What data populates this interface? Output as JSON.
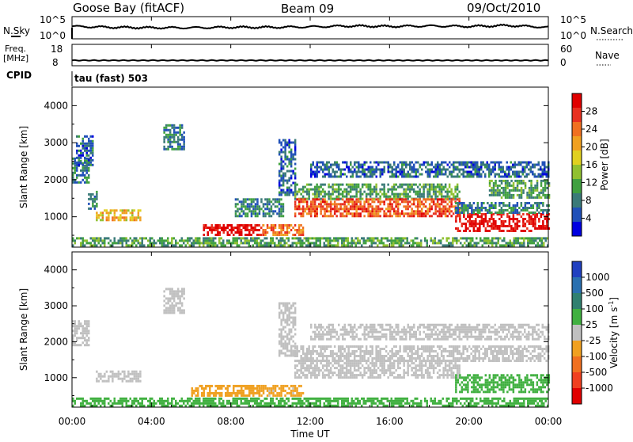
{
  "header": {
    "station": "Goose Bay (fitACF)",
    "beam": "Beam 09",
    "date": "09/Oct/2010"
  },
  "noise_panel": {
    "left_label": "N.Sky",
    "right_label": "N.Search",
    "left_ticks": [
      "10^5",
      "10^0"
    ],
    "right_ticks": [
      "10^5",
      "10^0"
    ]
  },
  "freq_panel": {
    "left_label_line1": "Freq.",
    "left_label_line2": "[MHz]",
    "left_ticks": [
      "18",
      "8"
    ],
    "right_label": "Nave",
    "right_ticks": [
      "60",
      "0"
    ],
    "cpid_label": "CPID",
    "cpid_value": "tau (fast) 503"
  },
  "power_colorbar": {
    "label": "Power [dB]",
    "ticks": [
      "28",
      "24",
      "20",
      "16",
      "12",
      "8",
      "4"
    ],
    "colors": [
      "#0000e0",
      "#2050b8",
      "#3a7a78",
      "#40a040",
      "#90c030",
      "#e0d020",
      "#f0a020",
      "#f07020",
      "#e83020",
      "#e00000"
    ]
  },
  "velocity_colorbar": {
    "label": "Velocity [m s",
    "label_sup": "-1",
    "label_end": "]",
    "ticks": [
      "1000",
      "500",
      "100",
      "25",
      "-25",
      "-100",
      "-500",
      "-1000"
    ],
    "colors": [
      "#2040c0",
      "#2a70b0",
      "#308070",
      "#40b040",
      "#c0c0c0",
      "#f0a020",
      "#f07020",
      "#f04020",
      "#e00000"
    ]
  },
  "chart_data": [
    {
      "type": "line",
      "name": "noise",
      "x": [
        0,
        2,
        4,
        6,
        8,
        10,
        12,
        14,
        16,
        18,
        20,
        22,
        24
      ],
      "series": [
        {
          "values": [
            2.8,
            2.6,
            2.5,
            2.5,
            2.6,
            2.6,
            2.7,
            2.9,
            2.8,
            2.9,
            2.8,
            3.0,
            2.6
          ]
        }
      ]
    },
    {
      "type": "line",
      "name": "frequency",
      "x": [
        0,
        24
      ],
      "series": [
        {
          "values": [
            10.5,
            10.5
          ]
        }
      ]
    },
    {
      "type": "heatmap",
      "name": "power",
      "xlabel": "Time UT",
      "ylabel": "Slant Range [km]",
      "xlim": [
        0,
        24
      ],
      "ylim": [
        180,
        4500
      ],
      "xticks": [
        "00:00",
        "04:00",
        "08:00",
        "12:00",
        "16:00",
        "20:00",
        "00:00"
      ],
      "yticks": [
        1000,
        2000,
        3000,
        4000
      ],
      "regions": [
        {
          "t0": 0.0,
          "t1": 24.0,
          "r0": 200,
          "r1": 450,
          "value": 10
        },
        {
          "t0": 0.0,
          "t1": 0.8,
          "r0": 1900,
          "r1": 2600,
          "value": 8
        },
        {
          "t0": 0.2,
          "t1": 1.0,
          "r0": 2400,
          "r1": 3200,
          "value": 6
        },
        {
          "t0": 0.8,
          "t1": 1.2,
          "r0": 1200,
          "r1": 1700,
          "value": 8
        },
        {
          "t0": 1.2,
          "t1": 3.4,
          "r0": 900,
          "r1": 1200,
          "value": 18
        },
        {
          "t0": 4.6,
          "t1": 5.6,
          "r0": 2800,
          "r1": 3500,
          "value": 8
        },
        {
          "t0": 6.6,
          "t1": 9.6,
          "r0": 500,
          "r1": 800,
          "value": 28
        },
        {
          "t0": 9.6,
          "t1": 11.6,
          "r0": 500,
          "r1": 800,
          "value": 22
        },
        {
          "t0": 8.2,
          "t1": 10.6,
          "r0": 1000,
          "r1": 1500,
          "value": 8
        },
        {
          "t0": 10.4,
          "t1": 11.2,
          "r0": 1600,
          "r1": 3100,
          "value": 6
        },
        {
          "t0": 11.2,
          "t1": 19.5,
          "r0": 1500,
          "r1": 1900,
          "value": 10
        },
        {
          "t0": 11.2,
          "t1": 19.5,
          "r0": 1000,
          "r1": 1500,
          "value": 24
        },
        {
          "t0": 12.0,
          "t1": 24.0,
          "r0": 2100,
          "r1": 2500,
          "value": 6
        },
        {
          "t0": 19.3,
          "t1": 24.0,
          "r0": 600,
          "r1": 1100,
          "value": 28
        },
        {
          "t0": 19.3,
          "t1": 24.0,
          "r0": 1100,
          "r1": 1400,
          "value": 8
        },
        {
          "t0": 21.0,
          "t1": 24.0,
          "r0": 1500,
          "r1": 2000,
          "value": 10
        }
      ]
    },
    {
      "type": "heatmap",
      "name": "velocity",
      "xlabel": "Time UT",
      "ylabel": "Slant Range [km]",
      "xlim": [
        0,
        24
      ],
      "ylim": [
        180,
        4500
      ],
      "xticks": [
        "00:00",
        "04:00",
        "08:00",
        "12:00",
        "16:00",
        "20:00",
        "00:00"
      ],
      "yticks": [
        1000,
        2000,
        3000,
        4000
      ],
      "regions": [
        {
          "t0": 0.0,
          "t1": 24.0,
          "r0": 200,
          "r1": 450,
          "value": 60
        },
        {
          "t0": 0.0,
          "t1": 0.8,
          "r0": 1900,
          "r1": 2600,
          "value": 0
        },
        {
          "t0": 1.2,
          "t1": 3.4,
          "r0": 900,
          "r1": 1200,
          "value": 0
        },
        {
          "t0": 4.6,
          "t1": 5.6,
          "r0": 2800,
          "r1": 3500,
          "value": 0
        },
        {
          "t0": 6.0,
          "t1": 9.4,
          "r0": 500,
          "r1": 800,
          "value": -80
        },
        {
          "t0": 9.4,
          "t1": 11.6,
          "r0": 500,
          "r1": 800,
          "value": -40
        },
        {
          "t0": 10.4,
          "t1": 11.2,
          "r0": 1600,
          "r1": 3100,
          "value": 0
        },
        {
          "t0": 11.2,
          "t1": 24.0,
          "r0": 1500,
          "r1": 1900,
          "value": 0
        },
        {
          "t0": 11.2,
          "t1": 19.5,
          "r0": 1000,
          "r1": 1500,
          "value": 0
        },
        {
          "t0": 12.0,
          "t1": 24.0,
          "r0": 2100,
          "r1": 2500,
          "value": 0
        },
        {
          "t0": 19.3,
          "t1": 24.0,
          "r0": 600,
          "r1": 1100,
          "value": 60
        }
      ]
    }
  ]
}
